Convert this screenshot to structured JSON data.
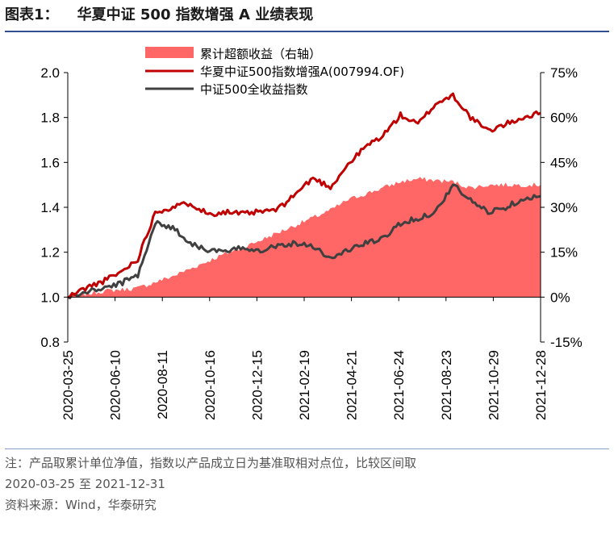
{
  "header": {
    "label": "图表1：",
    "title": "华夏中证 500 指数增强 A 业绩表现"
  },
  "notes": {
    "line1": "注：产品取累计单位净值，指数以产品成立日为基准取相对点位，比较区间取",
    "line2": "2020-03-25 至 2021-12-31",
    "source": "资料来源：Wind，华泰研究"
  },
  "chart_data": {
    "type": "line",
    "title": "",
    "xlabel": "",
    "ylabel": "",
    "x_ticks": [
      "2020-03-25",
      "2020-06-10",
      "2020-08-11",
      "2020-10-16",
      "2020-12-15",
      "2021-02-19",
      "2021-04-21",
      "2021-06-24",
      "2021-08-23",
      "2021-10-29",
      "2021-12-28"
    ],
    "ylim_left": [
      0.8,
      2.0
    ],
    "yticks_left": [
      "0.8",
      "1.0",
      "1.2",
      "1.4",
      "1.6",
      "1.8",
      "2.0"
    ],
    "ylim_right": [
      -15,
      75
    ],
    "yticks_right": [
      "-15%",
      "0%",
      "15%",
      "30%",
      "45%",
      "60%",
      "75%"
    ],
    "legend_position": "top-center",
    "grid": false,
    "colors": {
      "excess": "#ff6666",
      "fund": "#c00000",
      "index": "#404040"
    },
    "series": [
      {
        "name": "累计超额收益（右轴）",
        "type": "area",
        "axis": "right",
        "values": [
          0,
          1,
          2,
          2.5,
          3,
          5,
          7,
          9.5,
          12,
          14.5,
          16.5,
          19,
          21.5,
          24,
          26.5,
          29,
          32.5,
          34.5,
          36.5,
          38.5,
          39.5,
          39,
          38.5,
          36.5,
          37.5,
          37.5,
          37.5,
          37.5
        ]
      },
      {
        "name": "华夏中证500指数增强A(007994.OF)",
        "type": "line",
        "axis": "left",
        "values": [
          1.0,
          1.04,
          1.07,
          1.11,
          1.17,
          1.38,
          1.4,
          1.42,
          1.37,
          1.38,
          1.37,
          1.38,
          1.39,
          1.46,
          1.53,
          1.49,
          1.59,
          1.67,
          1.72,
          1.81,
          1.77,
          1.86,
          1.9,
          1.8,
          1.74,
          1.77,
          1.8,
          1.82
        ]
      },
      {
        "name": "中证500全收益指数",
        "type": "line",
        "axis": "left",
        "values": [
          1.0,
          1.02,
          1.04,
          1.06,
          1.1,
          1.33,
          1.31,
          1.24,
          1.21,
          1.2,
          1.22,
          1.21,
          1.23,
          1.24,
          1.23,
          1.17,
          1.21,
          1.24,
          1.26,
          1.33,
          1.35,
          1.38,
          1.5,
          1.43,
          1.38,
          1.4,
          1.44,
          1.45
        ]
      }
    ]
  }
}
